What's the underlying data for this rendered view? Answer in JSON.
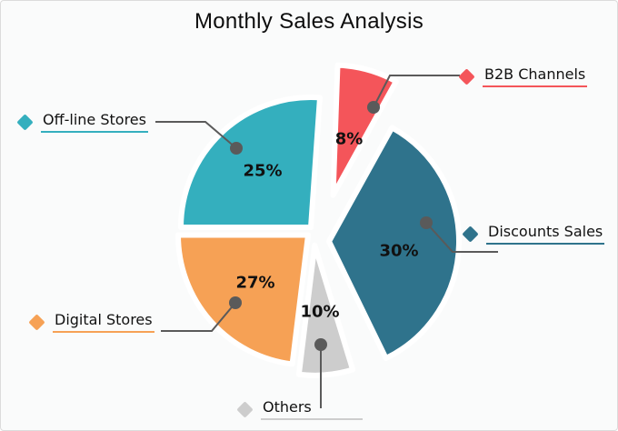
{
  "title": "Monthly Sales Analysis",
  "chart_data": {
    "type": "pie",
    "title": "Monthly Sales Analysis",
    "values_unit": "%",
    "legend_position": "callout labels around pie",
    "marker_shape": "diamond",
    "callout_color": "#5a5a5a",
    "background_color": "#fafbfb",
    "slices": [
      {
        "name": "B2B Channels",
        "value": 8,
        "pct_label": "8%",
        "color": "#f4555a"
      },
      {
        "name": "Discounts Sales",
        "value": 30,
        "pct_label": "30%",
        "color": "#2f738c"
      },
      {
        "name": "Others",
        "value": 10,
        "pct_label": "10%",
        "color": "#cdcdcd"
      },
      {
        "name": "Digital Stores",
        "value": 27,
        "pct_label": "27%",
        "color": "#f6a155"
      },
      {
        "name": "Off-line Stores",
        "value": 25,
        "pct_label": "25%",
        "color": "#34afbe"
      }
    ]
  }
}
